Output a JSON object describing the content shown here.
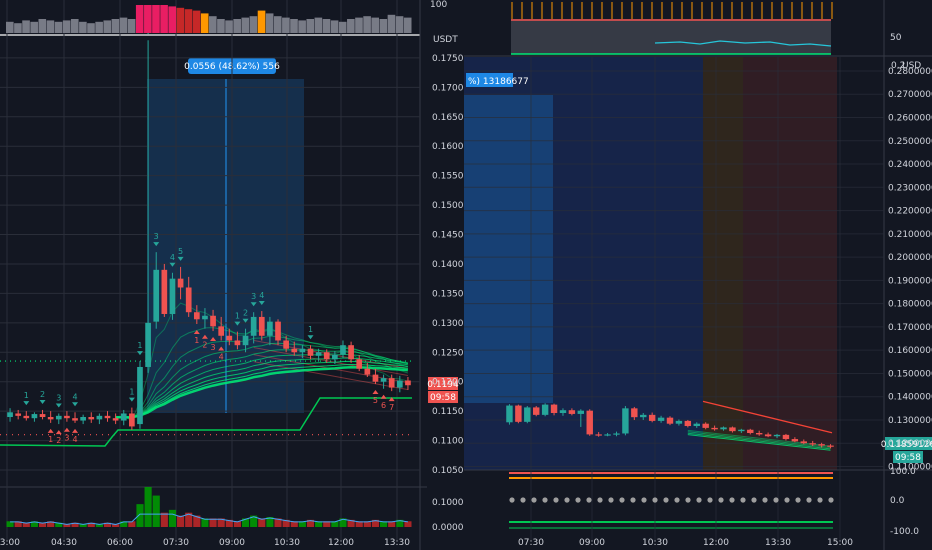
{
  "left_chart": {
    "quote_unit": "USDT",
    "volume_scale_top": "100",
    "measure_label": "0.0556 (48.62%) 556",
    "last_price": "0.1194",
    "countdown": "09:58",
    "y_ticks": [
      "0.1750",
      "0.1700",
      "0.1650",
      "0.1600",
      "0.1550",
      "0.1500",
      "0.1450",
      "0.1400",
      "0.1350",
      "0.1300",
      "0.1250",
      "0.1200",
      "0.1150",
      "0.1100",
      "0.1050"
    ],
    "x_ticks": [
      "03:00",
      "04:30",
      "06:00",
      "07:30",
      "09:00",
      "10:30",
      "12:00",
      "13:30"
    ],
    "vol_ticks": [
      "0.1000",
      "0.0000"
    ]
  },
  "right_chart": {
    "quote_unit": "USD",
    "osc_tick": "50",
    "measure_label": "%) 13186677",
    "last_price": "0.11859126",
    "countdown": "09:58",
    "y_ticks": [
      "0.28000000",
      "0.27000000",
      "0.26000000",
      "0.25000000",
      "0.24000000",
      "0.23000000",
      "0.22000000",
      "0.21000000",
      "0.20000000",
      "0.19000000",
      "0.18000000",
      "0.17000000",
      "0.16000000",
      "0.15000000",
      "0.14000000",
      "0.13000000",
      "0.12000000",
      "0.11000000"
    ],
    "y_top_partial": "0.2",
    "x_ticks": [
      "07:30",
      "09:00",
      "10:30",
      "12:00",
      "13:30",
      "15:00"
    ],
    "lower_ticks": [
      "100.0",
      "0.0",
      "-100.0"
    ]
  },
  "colors": {
    "bg": "#131722",
    "grid": "#2a2e39",
    "up": "#26a69a",
    "down": "#ef5350",
    "ribbon": "#00e676",
    "sel": "#2962ff",
    "measure": "#1e88e5"
  },
  "chart_data": [
    {
      "type": "candlestick",
      "market": "USDT",
      "x_labels": [
        "03:00",
        "04:30",
        "06:00",
        "07:30",
        "09:00",
        "10:30",
        "12:00",
        "13:30"
      ],
      "ylim": [
        0.105,
        0.176
      ],
      "candles": [
        {
          "o": 0.114,
          "h": 0.1155,
          "l": 0.1132,
          "c": 0.1148
        },
        {
          "o": 0.1146,
          "h": 0.1152,
          "l": 0.1136,
          "c": 0.1142
        },
        {
          "o": 0.1142,
          "h": 0.115,
          "l": 0.1134,
          "c": 0.1138
        },
        {
          "o": 0.1138,
          "h": 0.1148,
          "l": 0.1132,
          "c": 0.1145
        },
        {
          "o": 0.1145,
          "h": 0.1152,
          "l": 0.1136,
          "c": 0.114
        },
        {
          "o": 0.114,
          "h": 0.115,
          "l": 0.113,
          "c": 0.1136
        },
        {
          "o": 0.1136,
          "h": 0.1146,
          "l": 0.1128,
          "c": 0.1142
        },
        {
          "o": 0.1142,
          "h": 0.115,
          "l": 0.1132,
          "c": 0.1138
        },
        {
          "o": 0.1138,
          "h": 0.1148,
          "l": 0.113,
          "c": 0.1134
        },
        {
          "o": 0.1134,
          "h": 0.1144,
          "l": 0.1128,
          "c": 0.114
        },
        {
          "o": 0.114,
          "h": 0.1148,
          "l": 0.113,
          "c": 0.1136
        },
        {
          "o": 0.1136,
          "h": 0.1146,
          "l": 0.1128,
          "c": 0.1142
        },
        {
          "o": 0.1142,
          "h": 0.115,
          "l": 0.1132,
          "c": 0.1138
        },
        {
          "o": 0.1138,
          "h": 0.1146,
          "l": 0.1128,
          "c": 0.1134
        },
        {
          "o": 0.1134,
          "h": 0.1152,
          "l": 0.1126,
          "c": 0.1146
        },
        {
          "o": 0.1146,
          "h": 0.1156,
          "l": 0.1118,
          "c": 0.1124
        },
        {
          "o": 0.1128,
          "h": 0.1235,
          "l": 0.112,
          "c": 0.1225
        },
        {
          "o": 0.1225,
          "h": 0.178,
          "l": 0.1215,
          "c": 0.13
        },
        {
          "o": 0.1302,
          "h": 0.142,
          "l": 0.129,
          "c": 0.139
        },
        {
          "o": 0.139,
          "h": 0.14,
          "l": 0.131,
          "c": 0.1315
        },
        {
          "o": 0.1315,
          "h": 0.1385,
          "l": 0.1305,
          "c": 0.1375
        },
        {
          "o": 0.1375,
          "h": 0.1395,
          "l": 0.134,
          "c": 0.136
        },
        {
          "o": 0.136,
          "h": 0.1378,
          "l": 0.131,
          "c": 0.1318
        },
        {
          "o": 0.1318,
          "h": 0.133,
          "l": 0.1298,
          "c": 0.1306
        },
        {
          "o": 0.1306,
          "h": 0.1325,
          "l": 0.129,
          "c": 0.1312
        },
        {
          "o": 0.1312,
          "h": 0.1322,
          "l": 0.1286,
          "c": 0.1294
        },
        {
          "o": 0.1294,
          "h": 0.131,
          "l": 0.127,
          "c": 0.1278
        },
        {
          "o": 0.1278,
          "h": 0.129,
          "l": 0.1262,
          "c": 0.127
        },
        {
          "o": 0.127,
          "h": 0.1285,
          "l": 0.1255,
          "c": 0.1262
        },
        {
          "o": 0.1262,
          "h": 0.129,
          "l": 0.125,
          "c": 0.1278
        },
        {
          "o": 0.1278,
          "h": 0.1318,
          "l": 0.1265,
          "c": 0.131
        },
        {
          "o": 0.131,
          "h": 0.132,
          "l": 0.127,
          "c": 0.1278
        },
        {
          "o": 0.1278,
          "h": 0.131,
          "l": 0.1262,
          "c": 0.1302
        },
        {
          "o": 0.1302,
          "h": 0.1306,
          "l": 0.1262,
          "c": 0.127
        },
        {
          "o": 0.127,
          "h": 0.1278,
          "l": 0.125,
          "c": 0.1256
        },
        {
          "o": 0.1256,
          "h": 0.1268,
          "l": 0.1244,
          "c": 0.125
        },
        {
          "o": 0.125,
          "h": 0.1262,
          "l": 0.124,
          "c": 0.1256
        },
        {
          "o": 0.1256,
          "h": 0.1262,
          "l": 0.1238,
          "c": 0.1244
        },
        {
          "o": 0.1244,
          "h": 0.1256,
          "l": 0.1234,
          "c": 0.125
        },
        {
          "o": 0.125,
          "h": 0.1255,
          "l": 0.1232,
          "c": 0.1238
        },
        {
          "o": 0.1238,
          "h": 0.1252,
          "l": 0.123,
          "c": 0.1246
        },
        {
          "o": 0.1246,
          "h": 0.127,
          "l": 0.124,
          "c": 0.1262
        },
        {
          "o": 0.1262,
          "h": 0.1268,
          "l": 0.1232,
          "c": 0.1238
        },
        {
          "o": 0.1238,
          "h": 0.1245,
          "l": 0.1218,
          "c": 0.1222
        },
        {
          "o": 0.1222,
          "h": 0.1232,
          "l": 0.1208,
          "c": 0.1212
        },
        {
          "o": 0.1212,
          "h": 0.1222,
          "l": 0.1196,
          "c": 0.12
        },
        {
          "o": 0.12,
          "h": 0.1212,
          "l": 0.1188,
          "c": 0.1206
        },
        {
          "o": 0.1206,
          "h": 0.1212,
          "l": 0.1184,
          "c": 0.119
        },
        {
          "o": 0.119,
          "h": 0.121,
          "l": 0.1182,
          "c": 0.1202
        },
        {
          "o": 0.1202,
          "h": 0.1208,
          "l": 0.1186,
          "c": 0.1194
        }
      ],
      "volume": [
        0.02,
        0.02,
        0.015,
        0.02,
        0.015,
        0.02,
        0.015,
        0.01,
        0.015,
        0.01,
        0.015,
        0.01,
        0.015,
        0.01,
        0.02,
        0.02,
        0.08,
        0.14,
        0.11,
        0.05,
        0.06,
        0.04,
        0.05,
        0.04,
        0.03,
        0.03,
        0.03,
        0.025,
        0.02,
        0.03,
        0.04,
        0.03,
        0.035,
        0.03,
        0.025,
        0.02,
        0.02,
        0.025,
        0.02,
        0.02,
        0.02,
        0.03,
        0.025,
        0.02,
        0.02,
        0.025,
        0.02,
        0.02,
        0.025,
        0.02
      ]
    },
    {
      "type": "candlestick",
      "market": "USD",
      "x_labels": [
        "07:30",
        "09:00",
        "10:30",
        "12:00",
        "13:30",
        "15:00"
      ],
      "ylim": [
        0.1085,
        0.286
      ],
      "candles": [
        {
          "o": 0.129,
          "h": 0.1368,
          "l": 0.128,
          "c": 0.1362
        },
        {
          "o": 0.1362,
          "h": 0.1366,
          "l": 0.1286,
          "c": 0.1292
        },
        {
          "o": 0.1292,
          "h": 0.136,
          "l": 0.1286,
          "c": 0.1354
        },
        {
          "o": 0.1354,
          "h": 0.136,
          "l": 0.1316,
          "c": 0.1322
        },
        {
          "o": 0.1322,
          "h": 0.1372,
          "l": 0.1316,
          "c": 0.1366
        },
        {
          "o": 0.1366,
          "h": 0.137,
          "l": 0.132,
          "c": 0.133
        },
        {
          "o": 0.133,
          "h": 0.135,
          "l": 0.1318,
          "c": 0.1342
        },
        {
          "o": 0.1342,
          "h": 0.135,
          "l": 0.132,
          "c": 0.1326
        },
        {
          "o": 0.1326,
          "h": 0.1346,
          "l": 0.127,
          "c": 0.134
        },
        {
          "o": 0.134,
          "h": 0.1346,
          "l": 0.1232,
          "c": 0.1238
        },
        {
          "o": 0.1238,
          "h": 0.1248,
          "l": 0.1228,
          "c": 0.1236
        },
        {
          "o": 0.1236,
          "h": 0.1244,
          "l": 0.123,
          "c": 0.1238
        },
        {
          "o": 0.1238,
          "h": 0.125,
          "l": 0.123,
          "c": 0.1242
        },
        {
          "o": 0.1242,
          "h": 0.136,
          "l": 0.1234,
          "c": 0.135
        },
        {
          "o": 0.135,
          "h": 0.1356,
          "l": 0.13,
          "c": 0.1312
        },
        {
          "o": 0.1312,
          "h": 0.133,
          "l": 0.13,
          "c": 0.1322
        },
        {
          "o": 0.1322,
          "h": 0.1332,
          "l": 0.129,
          "c": 0.1296
        },
        {
          "o": 0.1296,
          "h": 0.1318,
          "l": 0.1288,
          "c": 0.131
        },
        {
          "o": 0.131,
          "h": 0.1316,
          "l": 0.1278,
          "c": 0.1284
        },
        {
          "o": 0.1284,
          "h": 0.1302,
          "l": 0.1276,
          "c": 0.1296
        },
        {
          "o": 0.1296,
          "h": 0.13,
          "l": 0.1268,
          "c": 0.1274
        },
        {
          "o": 0.1274,
          "h": 0.129,
          "l": 0.1266,
          "c": 0.1284
        },
        {
          "o": 0.1284,
          "h": 0.129,
          "l": 0.126,
          "c": 0.1266
        },
        {
          "o": 0.1266,
          "h": 0.1276,
          "l": 0.1254,
          "c": 0.126
        },
        {
          "o": 0.126,
          "h": 0.1272,
          "l": 0.1254,
          "c": 0.1268
        },
        {
          "o": 0.1268,
          "h": 0.1272,
          "l": 0.1246,
          "c": 0.1252
        },
        {
          "o": 0.1252,
          "h": 0.1262,
          "l": 0.1244,
          "c": 0.1258
        },
        {
          "o": 0.1258,
          "h": 0.1262,
          "l": 0.1238,
          "c": 0.1244
        },
        {
          "o": 0.1244,
          "h": 0.1254,
          "l": 0.1232,
          "c": 0.1238
        },
        {
          "o": 0.1238,
          "h": 0.1246,
          "l": 0.1226,
          "c": 0.123
        },
        {
          "o": 0.123,
          "h": 0.124,
          "l": 0.1222,
          "c": 0.1236
        },
        {
          "o": 0.1236,
          "h": 0.124,
          "l": 0.1212,
          "c": 0.1218
        },
        {
          "o": 0.1218,
          "h": 0.1226,
          "l": 0.1204,
          "c": 0.1208
        },
        {
          "o": 0.1208,
          "h": 0.1216,
          "l": 0.1196,
          "c": 0.12
        },
        {
          "o": 0.12,
          "h": 0.121,
          "l": 0.1188,
          "c": 0.1196
        },
        {
          "o": 0.1196,
          "h": 0.1202,
          "l": 0.1182,
          "c": 0.119
        },
        {
          "o": 0.119,
          "h": 0.1196,
          "l": 0.1178,
          "c": 0.1186
        }
      ]
    }
  ]
}
